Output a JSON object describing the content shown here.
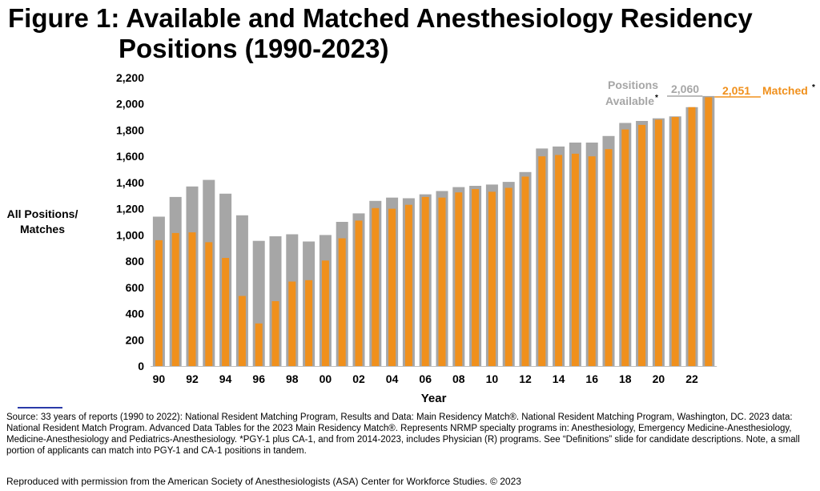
{
  "title": {
    "line1": "Figure 1: Available and Matched Anesthesiology Residency",
    "line2": "Positions (1990-2023)"
  },
  "colors": {
    "available": "#a6a6a6",
    "matched": "#f0901c"
  },
  "chart_data": {
    "type": "bar",
    "title": "Figure 1: Available and Matched Anesthesiology Residency Positions (1990-2023)",
    "xlabel": "Year",
    "ylabel": "All Positions/ Matches",
    "ylabel_lines": [
      "All Positions/",
      "Matches"
    ],
    "ylim": [
      0,
      2200
    ],
    "yticks": [
      0,
      200,
      400,
      600,
      800,
      1000,
      1200,
      1400,
      1600,
      1800,
      2000,
      2200
    ],
    "ytick_labels": [
      "0",
      "200",
      "400",
      "600",
      "800",
      "1,000",
      "1,200",
      "1,400",
      "1,600",
      "1,800",
      "2,000",
      "2,200"
    ],
    "grid": false,
    "legend": "none",
    "categories": [
      "1990",
      "1991",
      "1992",
      "1993",
      "1994",
      "1995",
      "1996",
      "1997",
      "1998",
      "1999",
      "2000",
      "2001",
      "2002",
      "2003",
      "2004",
      "2005",
      "2006",
      "2007",
      "2008",
      "2009",
      "2010",
      "2011",
      "2012",
      "2013",
      "2014",
      "2015",
      "2016",
      "2017",
      "2018",
      "2019",
      "2020",
      "2021",
      "2022",
      "2023"
    ],
    "xtick_labels": [
      "90",
      "",
      "92",
      "",
      "94",
      "",
      "96",
      "",
      "98",
      "",
      "00",
      "",
      "02",
      "",
      "04",
      "",
      "06",
      "",
      "08",
      "",
      "10",
      "",
      "12",
      "",
      "14",
      "",
      "16",
      "",
      "18",
      "",
      "20",
      "",
      "22",
      ""
    ],
    "series": [
      {
        "name": "Positions Available",
        "color": "#a6a6a6",
        "values": [
          1140,
          1290,
          1370,
          1420,
          1315,
          1150,
          955,
          990,
          1005,
          950,
          1000,
          1100,
          1165,
          1260,
          1285,
          1280,
          1310,
          1335,
          1365,
          1375,
          1385,
          1405,
          1480,
          1660,
          1675,
          1705,
          1705,
          1755,
          1855,
          1870,
          1890,
          1905,
          1975,
          2060
        ]
      },
      {
        "name": "Matched",
        "color": "#f0901c",
        "values": [
          960,
          1015,
          1020,
          945,
          825,
          535,
          325,
          495,
          645,
          655,
          805,
          975,
          1110,
          1205,
          1200,
          1230,
          1290,
          1285,
          1325,
          1350,
          1330,
          1360,
          1445,
          1600,
          1610,
          1620,
          1600,
          1655,
          1805,
          1840,
          1880,
          1900,
          1975,
          2051
        ]
      }
    ],
    "annotations": {
      "available_label_line1": "Positions",
      "available_label_line2": "Available",
      "available_star": "*",
      "available_value": "2,060",
      "matched_value": "2,051",
      "matched_label": "Matched",
      "matched_star": "*"
    }
  },
  "source_text": "Source: 33 years of reports (1990 to 2022): National Resident Matching Program, Results and Data: Main Residency Match®. National Resident Matching Program, Washington, DC. 2023 data: National Resident Match Program. Advanced Data Tables for the 2023 Main Residency Match®.  Represents NRMP specialty programs in: Anesthesiology, Emergency Medicine-Anesthesiology, Medicine-Anesthesiology and Pediatrics-Anesthesiology. *PGY-1 plus CA-1, and from 2014-2023, includes Physician (R) programs. See “Definitions” slide for candidate descriptions. Note, a small portion of applicants can match into PGY-1 and CA-1 positions in tandem.",
  "reproduced_text": "Reproduced with permission from the American Society of Anesthesiologists (ASA) Center for Workforce Studies. © 2023"
}
